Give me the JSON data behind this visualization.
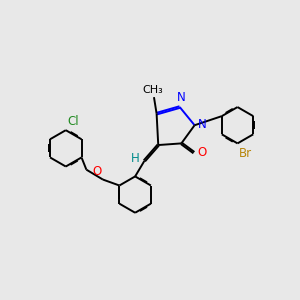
{
  "background_color": "#E8E8E8",
  "bond_color": "#000000",
  "bond_width": 1.4,
  "dbo": 0.025,
  "font_size": 8.5,
  "figsize": [
    3.0,
    3.0
  ],
  "dpi": 100,
  "xlim": [
    0.5,
    9.5
  ],
  "ylim": [
    1.5,
    8.5
  ]
}
